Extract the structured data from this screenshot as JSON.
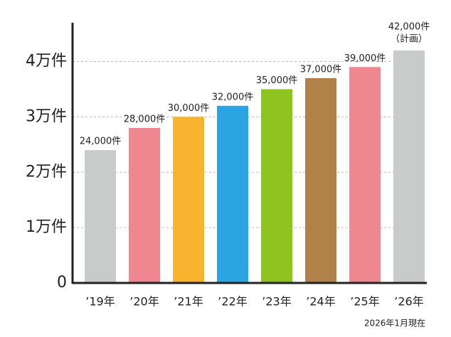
{
  "chart_data": {
    "type": "bar",
    "categories": [
      "’19年",
      "’20年",
      "’21年",
      "’22年",
      "’23年",
      "’24年",
      "’25年",
      "’26年"
    ],
    "values": [
      24000,
      28000,
      30000,
      32000,
      35000,
      37000,
      39000,
      42000
    ],
    "value_labels": [
      "24,000件",
      "28,000件",
      "30,000件",
      "32,000件",
      "35,000件",
      "37,000件",
      "39,000件",
      "42,000件"
    ],
    "colors": [
      "#c9caca",
      "#ee8790",
      "#f8b42e",
      "#2aa5e1",
      "#8fc31f",
      "#b0824a",
      "#ee8790",
      "#c9caca"
    ],
    "annotations": [
      "（計画）",
      "2026年1月現在"
    ],
    "ylim": [
      0,
      47000
    ],
    "yticks": [
      0,
      {
        "value": 10000,
        "label": "1万件"
      },
      {
        "value": 20000,
        "label": "2万件"
      },
      {
        "value": 30000,
        "label": "3万件"
      },
      {
        "value": 40000,
        "label": "4万件"
      }
    ],
    "grid": true
  }
}
